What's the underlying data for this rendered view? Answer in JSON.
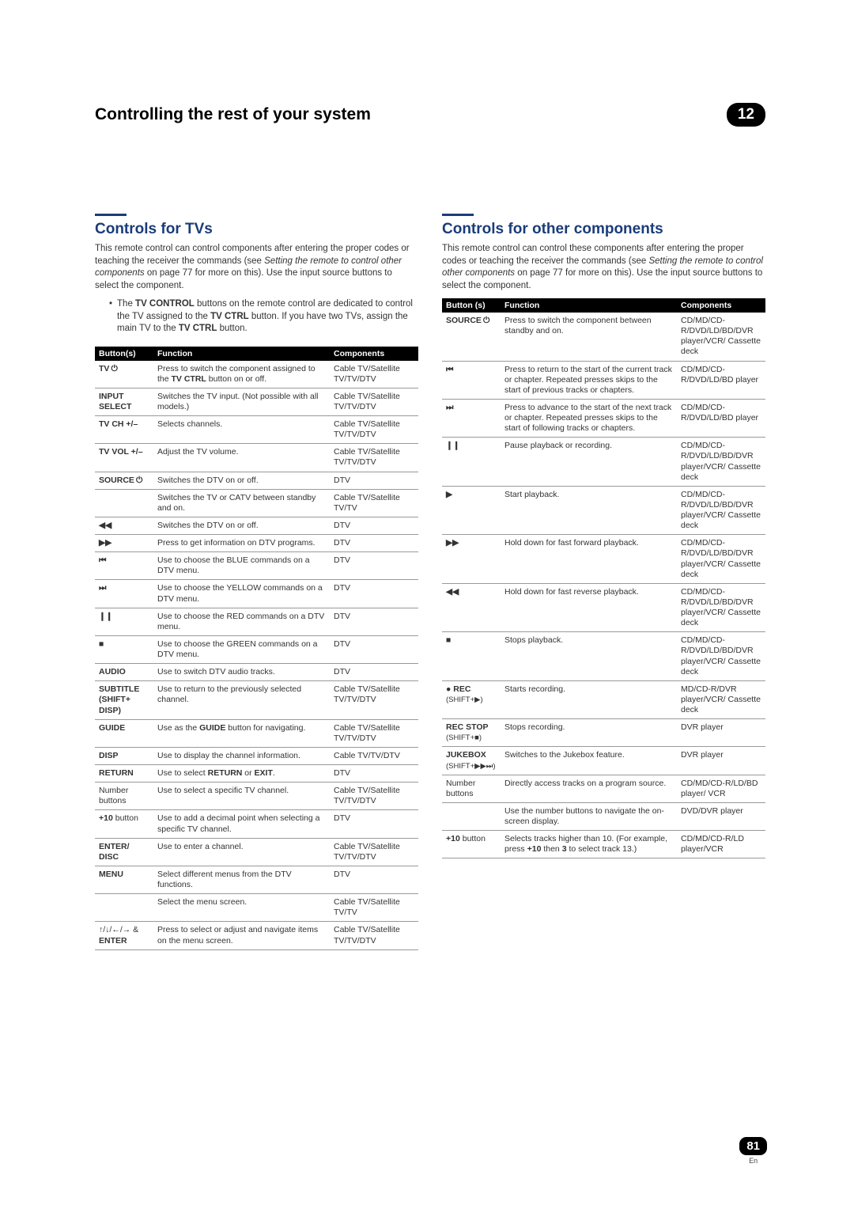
{
  "header": {
    "title": "Controlling the rest of your system",
    "chapter": "12"
  },
  "footer": {
    "page": "81",
    "lang": "En"
  },
  "left": {
    "title": "Controls for TVs",
    "intro_pre": "This remote control can control components after entering the proper codes or teaching the receiver the commands (see ",
    "intro_italic": "Setting the remote to control other components",
    "intro_post": " on page 77 for more on this). Use the input source buttons to select the component.",
    "bullet_pre": "The ",
    "bullet_b1": "TV CONTROL",
    "bullet_mid1": " buttons on the remote control are dedicated to control the TV assigned to the ",
    "bullet_b2": "TV CTRL",
    "bullet_mid2": " button. If you have two TVs, assign the main TV to the ",
    "bullet_b3": "TV CTRL",
    "bullet_end": " button.",
    "thead": {
      "c1": "Button(s)",
      "c2": "Function",
      "c3": "Components"
    },
    "rows": [
      {
        "b": "TV ⏻",
        "f_pre": "Press to switch the component assigned to the ",
        "f_b": "TV CTRL",
        "f_post": " button on or off.",
        "c": "Cable TV/Satellite TV/TV/DTV"
      },
      {
        "b": "INPUT SELECT",
        "f": "Switches the TV input. (Not possible with all models.)",
        "c": "Cable TV/Satellite TV/TV/DTV"
      },
      {
        "b": "TV CH +/–",
        "f": "Selects channels.",
        "c": "Cable TV/Satellite TV/TV/DTV"
      },
      {
        "b": "TV VOL +/–",
        "f": "Adjust the TV volume.",
        "c": "Cable TV/Satellite TV/TV/DTV"
      },
      {
        "b": "SOURCE ⏻",
        "f": "Switches the DTV on or off.",
        "c": "DTV"
      },
      {
        "b": "",
        "f": "Switches the TV or CATV between standby and on.",
        "c": "Cable TV/Satellite TV/TV"
      },
      {
        "b": "◀◀",
        "f": "Switches the DTV on or off.",
        "c": "DTV"
      },
      {
        "b": "▶▶",
        "f": "Press to get information on DTV programs.",
        "c": "DTV"
      },
      {
        "b": "⏮",
        "f": "Use to choose the BLUE commands on a DTV menu.",
        "c": "DTV"
      },
      {
        "b": "⏭",
        "f": "Use to choose the YELLOW commands on a DTV menu.",
        "c": "DTV"
      },
      {
        "b": "❙❙",
        "f": "Use to choose the RED commands on a DTV menu.",
        "c": "DTV"
      },
      {
        "b": "■",
        "f": "Use to choose the GREEN commands on a DTV menu.",
        "c": "DTV"
      },
      {
        "b": "AUDIO",
        "f": "Use to switch DTV audio tracks.",
        "c": "DTV"
      },
      {
        "b": "SUBTITLE (SHIFT+ DISP)",
        "f": "Use to return to the previously selected channel.",
        "c": "Cable TV/Satellite TV/TV/DTV"
      },
      {
        "b": "GUIDE",
        "f_pre": "Use as the ",
        "f_b": "GUIDE",
        "f_post": " button for navigating.",
        "c": "Cable TV/Satellite TV/TV/DTV"
      },
      {
        "b": "DISP",
        "f": "Use to display the channel information.",
        "c": "Cable TV/TV/DTV"
      },
      {
        "b": "RETURN",
        "f_pre": "Use to select ",
        "f_b": "RETURN",
        "f_mid": " or ",
        "f_b2": "EXIT",
        "f_post": ".",
        "c": "DTV"
      },
      {
        "b_plain": "Number buttons",
        "f": "Use to select a specific TV channel.",
        "c": "Cable TV/Satellite TV/TV/DTV"
      },
      {
        "b_mixed_pre": "+10",
        "b_mixed_post": " button",
        "f": "Use to add a decimal point when selecting a specific TV channel.",
        "c": "DTV"
      },
      {
        "b": "ENTER/ DISC",
        "f": "Use to enter a channel.",
        "c": "Cable TV/Satellite TV/TV/DTV"
      },
      {
        "b": "MENU",
        "f": "Select different menus from the DTV functions.",
        "c": "DTV"
      },
      {
        "b": "",
        "f": "Select the menu screen.",
        "c": "Cable TV/Satellite TV/TV"
      },
      {
        "b_arrows": "↑/↓/←/→ & ",
        "b_arrows_bold": "ENTER",
        "f": "Press to select or adjust and navigate items on the menu screen.",
        "c": "Cable TV/Satellite TV/TV/DTV"
      }
    ]
  },
  "right": {
    "title": "Controls for other components",
    "intro_pre": "This remote control can control these components after entering the proper codes or teaching the receiver the commands (see ",
    "intro_italic": "Setting the remote to control other components",
    "intro_post": " on page 77 for more on this). Use the input source buttons to select the component.",
    "thead": {
      "c1": "Button (s)",
      "c2": "Function",
      "c3": "Components"
    },
    "rows": [
      {
        "b": "SOURCE ⏻",
        "f": "Press to switch the component between standby and on.",
        "c": "CD/MD/CD-R/DVD/LD/BD/DVR player/VCR/ Cassette deck"
      },
      {
        "b": "⏮",
        "f": "Press to return to the start of the current track or chapter. Repeated presses skips to the start of previous tracks or chapters.",
        "c": "CD/MD/CD-R/DVD/LD/BD player"
      },
      {
        "b": "⏭",
        "f": "Press to advance to the start of the next track or chapter. Repeated presses skips to the start of following tracks or chapters.",
        "c": "CD/MD/CD-R/DVD/LD/BD player"
      },
      {
        "b": "❙❙",
        "f": "Pause playback or recording.",
        "c": "CD/MD/CD-R/DVD/LD/BD/DVR player/VCR/ Cassette deck"
      },
      {
        "b": "▶",
        "f": "Start playback.",
        "c": "CD/MD/CD-R/DVD/LD/BD/DVR player/VCR/ Cassette deck"
      },
      {
        "b": "▶▶",
        "f": "Hold down for fast forward playback.",
        "c": "CD/MD/CD-R/DVD/LD/BD/DVR player/VCR/ Cassette deck"
      },
      {
        "b": "◀◀",
        "f": "Hold down for fast reverse playback.",
        "c": "CD/MD/CD-R/DVD/LD/BD/DVR player/VCR/ Cassette deck"
      },
      {
        "b": "■",
        "f": "Stops playback.",
        "c": "CD/MD/CD-R/DVD/LD/BD/DVR player/VCR/ Cassette deck"
      },
      {
        "b_rec": "● REC",
        "b_rec_sub": "(SHIFT+▶)",
        "f": "Starts recording.",
        "c": "MD/CD-R/DVR player/VCR/ Cassette deck"
      },
      {
        "b": "REC STOP",
        "b_sub": "(SHIFT+■)",
        "f": "Stops recording.",
        "c": "DVR player"
      },
      {
        "b": "JUKEBOX",
        "b_sub": "(SHIFT+▶▶⏭)",
        "f": "Switches to the Jukebox feature.",
        "c": "DVR player"
      },
      {
        "b_plain": "Number buttons",
        "f": "Directly access tracks on a program source.",
        "c": "CD/MD/CD-R/LD/BD player/ VCR"
      },
      {
        "b": "",
        "f": "Use the number buttons to navigate the on-screen display.",
        "c": "DVD/DVR player"
      },
      {
        "b_mixed_pre": "+10",
        "b_mixed_post": " button",
        "f_pre": "Selects tracks higher than 10. (For example, press ",
        "f_b": "+10",
        "f_mid": " then ",
        "f_b2": "3",
        "f_post": " to select track 13.)",
        "c": "CD/MD/CD-R/LD player/VCR"
      }
    ]
  }
}
